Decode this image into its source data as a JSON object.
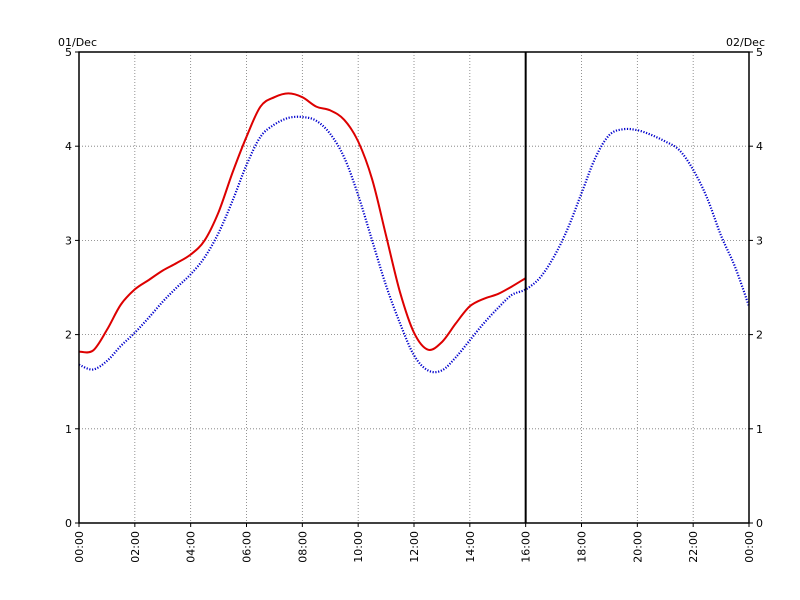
{
  "chart_data": {
    "type": "line",
    "x_unit": "time of day (hours)",
    "date_labels": {
      "left": "01/Dec",
      "right": "02/Dec"
    },
    "ylim": [
      0,
      5
    ],
    "y_ticks": [
      "0",
      "1",
      "2",
      "3",
      "4",
      "5"
    ],
    "xlim": [
      0,
      24
    ],
    "x_ticks": [
      "00:00",
      "02:00",
      "04:00",
      "06:00",
      "08:00",
      "10:00",
      "12:00",
      "14:00",
      "16:00",
      "18:00",
      "20:00",
      "22:00",
      "00:00"
    ],
    "grid": true,
    "current_time_marker": 16,
    "series": [
      {
        "color": "#dd0000",
        "style": "solid",
        "x": [
          0.0,
          0.5,
          1.0,
          1.5,
          2.0,
          2.5,
          3.0,
          3.5,
          4.0,
          4.5,
          5.0,
          5.5,
          6.0,
          6.5,
          7.0,
          7.5,
          8.0,
          8.5,
          9.0,
          9.5,
          10.0,
          10.5,
          11.0,
          11.5,
          12.0,
          12.5,
          13.0,
          13.5,
          14.0,
          14.5,
          15.0,
          15.5,
          16.0
        ],
        "y": [
          1.82,
          1.83,
          2.05,
          2.32,
          2.48,
          2.58,
          2.68,
          2.76,
          2.85,
          3.0,
          3.3,
          3.72,
          4.1,
          4.42,
          4.52,
          4.56,
          4.52,
          4.42,
          4.38,
          4.28,
          4.05,
          3.65,
          3.05,
          2.45,
          2.02,
          1.84,
          1.92,
          2.12,
          2.3,
          2.38,
          2.43,
          2.51,
          2.6
        ]
      },
      {
        "color": "#0000cc",
        "style": "dotted",
        "x": [
          0.0,
          0.5,
          1.0,
          1.5,
          2.0,
          2.5,
          3.0,
          3.5,
          4.0,
          4.5,
          5.0,
          5.5,
          6.0,
          6.5,
          7.0,
          7.5,
          8.0,
          8.5,
          9.0,
          9.5,
          10.0,
          10.5,
          11.0,
          11.5,
          12.0,
          12.5,
          13.0,
          13.5,
          14.0,
          14.5,
          15.0,
          15.5,
          16.0,
          16.5,
          17.0,
          17.5,
          18.0,
          18.5,
          19.0,
          19.5,
          20.0,
          20.5,
          21.0,
          21.5,
          22.0,
          22.5,
          23.0,
          23.5,
          24.0
        ],
        "y": [
          1.68,
          1.63,
          1.72,
          1.88,
          2.02,
          2.18,
          2.35,
          2.5,
          2.64,
          2.82,
          3.08,
          3.42,
          3.8,
          4.1,
          4.23,
          4.3,
          4.31,
          4.27,
          4.13,
          3.88,
          3.48,
          3.0,
          2.52,
          2.12,
          1.78,
          1.62,
          1.62,
          1.76,
          1.94,
          2.12,
          2.28,
          2.42,
          2.48,
          2.6,
          2.82,
          3.12,
          3.5,
          3.88,
          4.12,
          4.18,
          4.17,
          4.12,
          4.05,
          3.96,
          3.75,
          3.45,
          3.05,
          2.72,
          2.3
        ]
      }
    ]
  }
}
